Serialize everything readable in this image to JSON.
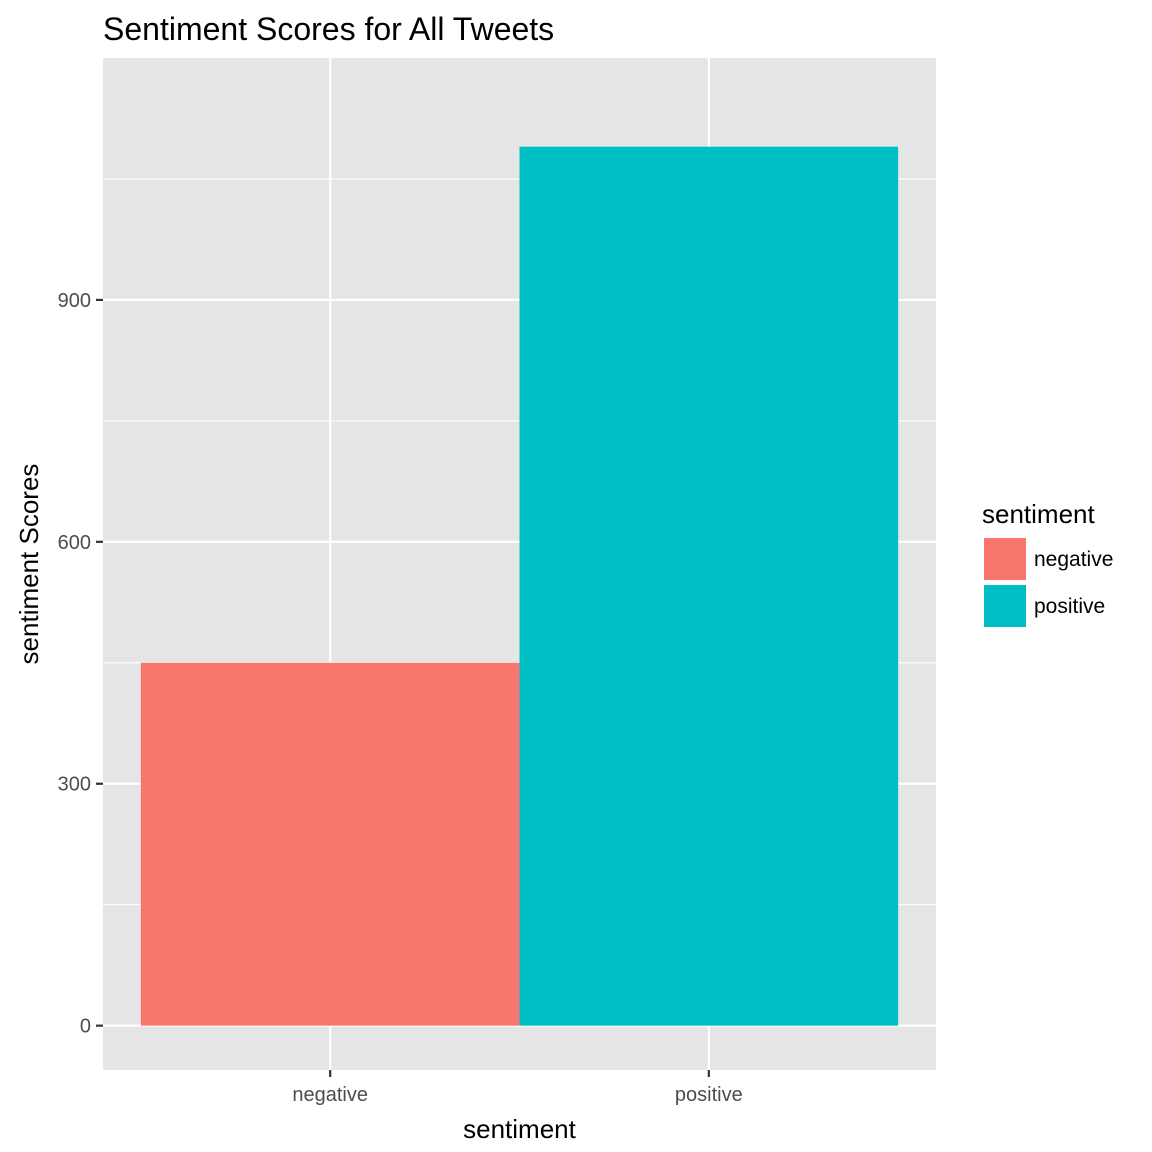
{
  "chart_data": {
    "type": "bar",
    "title": "Sentiment Scores for All Tweets",
    "xlabel": "sentiment",
    "ylabel": "sentiment Scores",
    "categories": [
      "negative",
      "positive"
    ],
    "values": [
      450,
      1090
    ],
    "ylim": [
      -55,
      1200
    ],
    "yticks": [
      0,
      300,
      600,
      900
    ],
    "yticks_labels": [
      "0",
      "300",
      "600",
      "900"
    ],
    "grid": true,
    "colors": {
      "negative": "#F8766D",
      "positive": "#00BFC4",
      "panel_bg": "#E5E5E5",
      "grid": "#FFFFFF"
    },
    "legend": {
      "title": "sentiment",
      "position": "right",
      "items": [
        {
          "label": "negative",
          "color": "#F8766D"
        },
        {
          "label": "positive",
          "color": "#00BFC4"
        }
      ]
    }
  }
}
